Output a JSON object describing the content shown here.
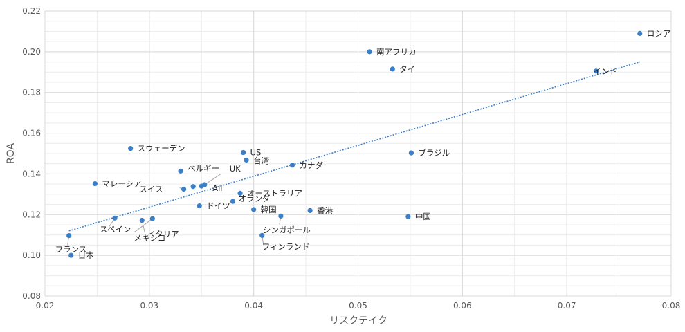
{
  "chart_data": {
    "type": "scatter",
    "xlabel": "リスクテイク",
    "ylabel": "ROA",
    "xlim": [
      0.02,
      0.08
    ],
    "ylim": [
      0.08,
      0.22
    ],
    "x_ticks": [
      "0.02",
      "0.03",
      "0.04",
      "0.05",
      "0.06",
      "0.07",
      "0.08"
    ],
    "y_ticks": [
      "0.08",
      "0.10",
      "0.12",
      "0.14",
      "0.16",
      "0.18",
      "0.20",
      "0.22"
    ],
    "grid": true,
    "minor_grid": true,
    "legend": "none",
    "colors": {
      "point": "#3a7fc7",
      "trendline": "#3a7fc7",
      "major_grid": "#d9d9d9",
      "minor_grid": "#ececec",
      "leader": "#a6a6a6"
    },
    "points": [
      {
        "label": "ロシア",
        "x": 0.077,
        "y": 0.209
      },
      {
        "label": "南アフリカ",
        "x": 0.0511,
        "y": 0.2
      },
      {
        "label": "タイ",
        "x": 0.0533,
        "y": 0.1915
      },
      {
        "label": "インド",
        "x": 0.0728,
        "y": 0.1905
      },
      {
        "label": "スウェーデン",
        "x": 0.0282,
        "y": 0.1525
      },
      {
        "label": "US",
        "x": 0.039,
        "y": 0.1505
      },
      {
        "label": "ブラジル",
        "x": 0.0551,
        "y": 0.1503
      },
      {
        "label": "台湾",
        "x": 0.0393,
        "y": 0.1468
      },
      {
        "label": "カナダ",
        "x": 0.0437,
        "y": 0.1443
      },
      {
        "label": "ベルギー",
        "x": 0.033,
        "y": 0.1414
      },
      {
        "label": "マレーシア",
        "x": 0.0248,
        "y": 0.1352
      },
      {
        "label": "UK",
        "x": 0.0353,
        "y": 0.1347
      },
      {
        "label": "All",
        "x": 0.035,
        "y": 0.134
      },
      {
        "label": "スイス",
        "x": 0.0333,
        "y": 0.1325
      },
      {
        "label": "",
        "x": 0.0342,
        "y": 0.1338
      },
      {
        "label": "オーストラリア",
        "x": 0.0387,
        "y": 0.1305
      },
      {
        "label": "オランダ",
        "x": 0.038,
        "y": 0.1265
      },
      {
        "label": "ドイツ",
        "x": 0.0348,
        "y": 0.1243
      },
      {
        "label": "韓国",
        "x": 0.04,
        "y": 0.1225
      },
      {
        "label": "香港",
        "x": 0.0454,
        "y": 0.122
      },
      {
        "label": "中国",
        "x": 0.0548,
        "y": 0.119
      },
      {
        "label": "シンガポール",
        "x": 0.0426,
        "y": 0.1193
      },
      {
        "label": "メキシコ",
        "x": 0.0303,
        "y": 0.118
      },
      {
        "label": "スペイン",
        "x": 0.0267,
        "y": 0.1183
      },
      {
        "label": "イタリア",
        "x": 0.0293,
        "y": 0.1172
      },
      {
        "label": "フィンランド",
        "x": 0.0408,
        "y": 0.1098
      },
      {
        "label": "フランス",
        "x": 0.0223,
        "y": 0.1097
      },
      {
        "label": "日本",
        "x": 0.0225,
        "y": 0.1
      }
    ],
    "trendline": {
      "type": "linear",
      "style": "dotted",
      "x": [
        0.0223,
        0.077
      ],
      "y": [
        0.112,
        0.195
      ]
    }
  }
}
